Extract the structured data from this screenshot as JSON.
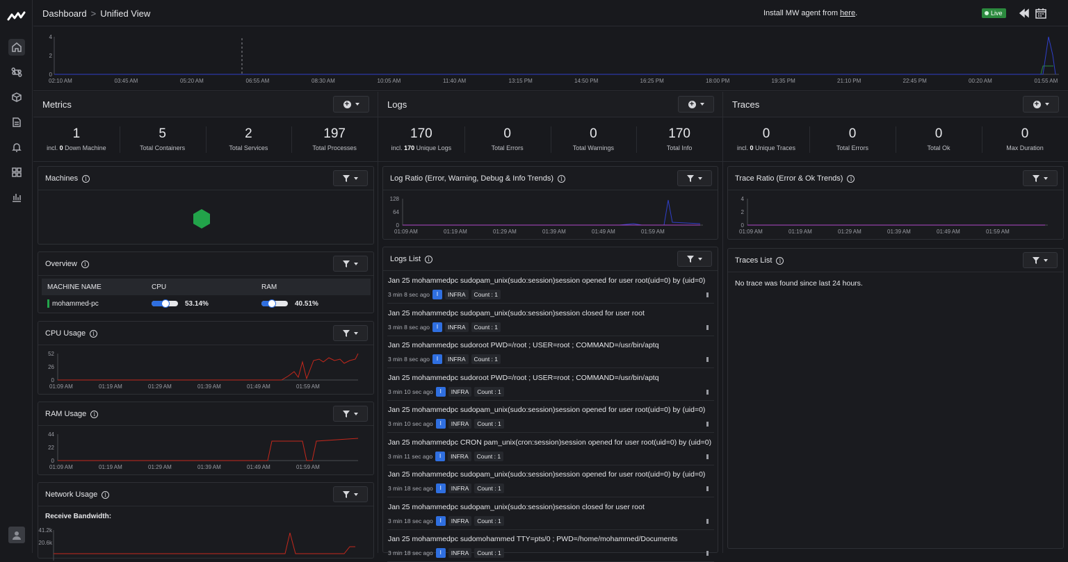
{
  "breadcrumb": {
    "root": "Dashboard",
    "separator": ">",
    "current": "Unified View"
  },
  "install": {
    "prefix": "Install MW agent from ",
    "link": "here",
    "suffix": "."
  },
  "live_label": "Live",
  "colors": {
    "accent_blue": "#2f6fe0",
    "live_green": "#2b8a3e",
    "node_green": "#22a34a",
    "cpu_red": "#c5281c",
    "panel_bg": "#1a1b1f"
  },
  "sidebar": {
    "items": [
      "home-icon",
      "command-icon",
      "cube-icon",
      "document-icon",
      "bell-icon",
      "grid-icon",
      "bar-chart-icon"
    ],
    "avatar": "user-icon"
  },
  "timeline": {
    "yticks": [
      "4",
      "2",
      "0"
    ],
    "xticks": [
      "02:10 AM",
      "03:45 AM",
      "05:20 AM",
      "06:55 AM",
      "08:30 AM",
      "10:05 AM",
      "11:40 AM",
      "13:15 PM",
      "14:50 PM",
      "16:25 PM",
      "18:00 PM",
      "19:35 PM",
      "21:10 PM",
      "22:45 PM",
      "00:20 AM",
      "01:55 AM"
    ]
  },
  "metrics": {
    "title": "Metrics",
    "stats": [
      {
        "value": "1",
        "pre": "incl. ",
        "bold": "0",
        "post": " Down Machine"
      },
      {
        "value": "5",
        "pre": "",
        "bold": "",
        "post": "Total Containers"
      },
      {
        "value": "2",
        "pre": "",
        "bold": "",
        "post": "Total Services"
      },
      {
        "value": "197",
        "pre": "",
        "bold": "",
        "post": "Total Processes"
      }
    ],
    "machines_title": "Machines",
    "overview": {
      "title": "Overview",
      "headers": [
        "MACHINE NAME",
        "CPU",
        "RAM"
      ],
      "row": {
        "name": "mohammed-pc",
        "cpu": "53.14%",
        "cpu_value": 53.14,
        "ram": "40.51%",
        "ram_value": 40.51
      }
    },
    "cpu_usage": {
      "title": "CPU Usage",
      "yticks": [
        "52",
        "26",
        "0"
      ],
      "xticks": [
        "01:09 AM",
        "01:19 AM",
        "01:29 AM",
        "01:39 AM",
        "01:49 AM",
        "01:59 AM"
      ]
    },
    "ram_usage": {
      "title": "RAM Usage",
      "yticks": [
        "44",
        "22",
        "0"
      ],
      "xticks": [
        "01:09 AM",
        "01:19 AM",
        "01:29 AM",
        "01:39 AM",
        "01:49 AM",
        "01:59 AM"
      ]
    },
    "network_usage": {
      "title": "Network Usage",
      "subtitle": "Receive Bandwidth:",
      "yticks": [
        "41.2k",
        "20.6k"
      ]
    }
  },
  "logs": {
    "title": "Logs",
    "stats": [
      {
        "value": "170",
        "pre": "incl. ",
        "bold": "170",
        "post": " Unique Logs"
      },
      {
        "value": "0",
        "pre": "",
        "bold": "",
        "post": "Total Errors"
      },
      {
        "value": "0",
        "pre": "",
        "bold": "",
        "post": "Total Warnings"
      },
      {
        "value": "170",
        "pre": "",
        "bold": "",
        "post": "Total Info"
      }
    ],
    "ratio": {
      "title": "Log Ratio (Error, Warning, Debug & Info Trends)",
      "yticks": [
        "128",
        "64",
        "0"
      ],
      "xticks": [
        "01:09 AM",
        "01:19 AM",
        "01:29 AM",
        "01:39 AM",
        "01:49 AM",
        "01:59 AM"
      ]
    },
    "list_title": "Logs List",
    "items": [
      {
        "msg": "Jan 25 mohammedpc sudopam_unix(sudo:session)session opened for user root(uid=0) by (uid=0)",
        "ago": "3 min 8 sec ago",
        "level": "I",
        "source": "INFRA",
        "count": "Count : 1"
      },
      {
        "msg": "Jan 25 mohammedpc sudopam_unix(sudo:session)session closed for user root",
        "ago": "3 min 8 sec ago",
        "level": "I",
        "source": "INFRA",
        "count": "Count : 1"
      },
      {
        "msg": "Jan 25 mohammedpc sudoroot PWD=/root ; USER=root ; COMMAND=/usr/bin/aptq",
        "ago": "3 min 8 sec ago",
        "level": "I",
        "source": "INFRA",
        "count": "Count : 1"
      },
      {
        "msg": "Jan 25 mohammedpc sudoroot PWD=/root ; USER=root ; COMMAND=/usr/bin/aptq",
        "ago": "3 min 10 sec ago",
        "level": "I",
        "source": "INFRA",
        "count": "Count : 1"
      },
      {
        "msg": "Jan 25 mohammedpc sudopam_unix(sudo:session)session opened for user root(uid=0) by (uid=0)",
        "ago": "3 min 10 sec ago",
        "level": "I",
        "source": "INFRA",
        "count": "Count : 1"
      },
      {
        "msg": "Jan 25 mohammedpc CRON pam_unix(cron:session)session opened for user root(uid=0) by (uid=0)",
        "ago": "3 min 11 sec ago",
        "level": "I",
        "source": "INFRA",
        "count": "Count : 1"
      },
      {
        "msg": "Jan 25 mohammedpc sudopam_unix(sudo:session)session opened for user root(uid=0) by (uid=0)",
        "ago": "3 min 18 sec ago",
        "level": "I",
        "source": "INFRA",
        "count": "Count : 1"
      },
      {
        "msg": "Jan 25 mohammedpc sudopam_unix(sudo:session)session closed for user root",
        "ago": "3 min 18 sec ago",
        "level": "I",
        "source": "INFRA",
        "count": "Count : 1"
      },
      {
        "msg": "Jan 25 mohammedpc sudomohammed TTY=pts/0 ; PWD=/home/mohammed/Documents",
        "ago": "3 min 18 sec ago",
        "level": "I",
        "source": "INFRA",
        "count": "Count : 1"
      }
    ]
  },
  "traces": {
    "title": "Traces",
    "stats": [
      {
        "value": "0",
        "pre": "incl. ",
        "bold": "0",
        "post": " Unique Traces"
      },
      {
        "value": "0",
        "pre": "",
        "bold": "",
        "post": "Total Errors"
      },
      {
        "value": "0",
        "pre": "",
        "bold": "",
        "post": "Total Ok"
      },
      {
        "value": "0",
        "pre": "",
        "bold": "",
        "post": "Max Duration"
      }
    ],
    "ratio": {
      "title": "Trace Ratio (Error & Ok Trends)",
      "yticks": [
        "4",
        "2",
        "0"
      ],
      "xticks": [
        "01:09 AM",
        "01:19 AM",
        "01:29 AM",
        "01:39 AM",
        "01:49 AM",
        "01:59 AM"
      ]
    },
    "list_title": "Traces List",
    "empty": "No trace was found since last 24 hours."
  }
}
